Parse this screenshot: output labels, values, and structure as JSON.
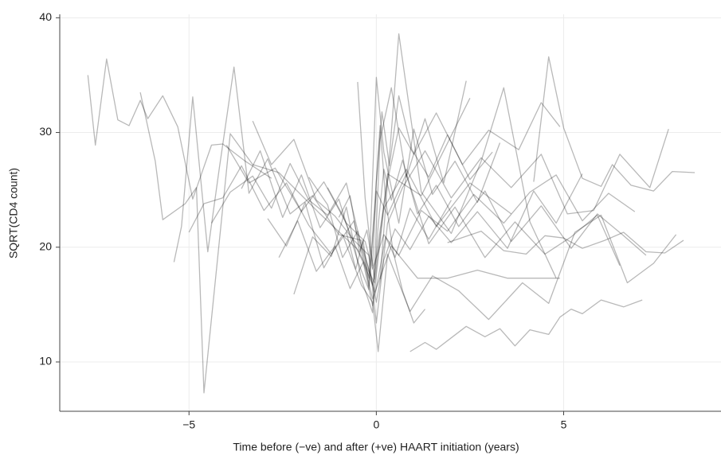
{
  "chart_data": {
    "type": "line",
    "x_label": "Time before (−ve) and after (+ve) HAART initiation (years)",
    "y_label": "SQRT(CD4 count)",
    "xlim": [
      -8.45,
      9.2
    ],
    "ylim": [
      5.7,
      40.3
    ],
    "xticks": [
      {
        "value": -5,
        "label": "−5"
      },
      0,
      5
    ],
    "yticks": [
      10,
      20,
      30,
      40
    ],
    "grid": true,
    "color": "#000000",
    "opacity": 0.28,
    "series": [
      {
        "x": [
          -7.7,
          -7.5,
          -7.2,
          -6.9,
          -6.6,
          -6.3,
          -6.1,
          -5.7,
          -5.3,
          -4.9,
          -4.4,
          -4.1,
          -3.5,
          -2.8
        ],
        "values": [
          35,
          28.9,
          36.4,
          31.1,
          30.6,
          32.8,
          31.2,
          33.2,
          30.5,
          24.2,
          28.9,
          29,
          27.5,
          26
        ]
      },
      {
        "x": [
          -6.3,
          -5.9,
          -5.7,
          -5.1,
          -4.8,
          -4.6,
          -4.4,
          -3.9,
          -3.3,
          -2.6,
          -1.5,
          -0.5,
          -0.05,
          0.3,
          1.2,
          2.5
        ],
        "values": [
          33.5,
          27.5,
          22.4,
          23.8,
          25.2,
          7.3,
          13.8,
          29.9,
          27.2,
          26.5,
          22.9,
          19.8,
          16.9,
          26.4,
          24.5,
          33
        ]
      },
      {
        "x": [
          -5.4,
          -5.2,
          -4.9,
          -4.5,
          -4.2,
          -3.8,
          -3.4,
          -2.9,
          -2.3,
          -1.7,
          -1.0,
          -0.4,
          -0.05,
          0.2,
          0.8,
          1.6,
          2.5,
          3.6
        ],
        "values": [
          18.7,
          21.8,
          33.1,
          19.6,
          26.7,
          35.7,
          24.7,
          27.7,
          22.9,
          24.5,
          21.1,
          20.6,
          16.1,
          23.4,
          26.8,
          21.8,
          25.6,
          22.9
        ]
      },
      {
        "x": [
          0.9,
          1.3,
          1.6,
          2.0,
          2.4,
          2.9,
          3.3,
          3.7,
          4.1,
          4.6,
          4.9,
          5.2,
          5.5,
          6.0,
          6.6,
          7.1
        ],
        "values": [
          10.9,
          11.7,
          11.1,
          12.1,
          13.1,
          12.2,
          12.9,
          11.4,
          12.8,
          12.4,
          13.9,
          14.6,
          14.2,
          15.4,
          14.8,
          15.4
        ]
      },
      {
        "x": [
          1.9,
          2.8,
          3.4,
          4.0,
          4.5,
          5.0,
          5.5,
          6.1,
          6.6,
          7.2,
          7.7,
          8.2
        ],
        "values": [
          20.4,
          21.4,
          19.7,
          19.4,
          21.0,
          20.8,
          19.9,
          20.6,
          21.3,
          19.6,
          19.5,
          20.6
        ]
      },
      {
        "x": [
          4.2,
          4.6,
          5.0,
          5.5,
          6.0,
          6.3,
          6.8,
          7.4,
          7.9,
          8.5
        ],
        "values": [
          25.7,
          36.6,
          30.4,
          26,
          25.3,
          27.2,
          25.4,
          24.9,
          26.6,
          26.5
        ]
      },
      {
        "x": [
          0.1,
          0.6,
          1.2,
          2.0,
          2.8,
          3.4,
          4.1,
          4.8
        ],
        "values": [
          17.2,
          38.6,
          24.8,
          21.2,
          27.5,
          33.9,
          22.2,
          17.3
        ]
      },
      {
        "x": [
          -5.0,
          -4.6,
          -4.1,
          -3.6,
          -3.0,
          -2.4,
          -1.8,
          -1.2,
          -0.6,
          -0.1,
          0.4,
          1.1,
          1.9,
          2.7,
          3.5,
          4.3,
          4.9
        ],
        "values": [
          21.3,
          23.8,
          24.3,
          27.1,
          23.2,
          25.6,
          21.9,
          19.4,
          22.3,
          15.5,
          20.1,
          17.3,
          17.3,
          18.0,
          17.3,
          17.3,
          17.3
        ]
      },
      {
        "x": [
          -3.3,
          -2.8,
          -2.2,
          -1.6,
          -1.1,
          -0.6,
          -0.2,
          0,
          0.3,
          0.7,
          1.3,
          2.0,
          2.8,
          3.6,
          4.4,
          5.1,
          5.8,
          6.5,
          7.3,
          7.8
        ],
        "values": [
          31,
          27.2,
          29.4,
          24.1,
          22.7,
          20.6,
          19.3,
          13.4,
          22.1,
          25.2,
          28.4,
          24.3,
          27.8,
          25.2,
          28.1,
          22.9,
          23.2,
          28.1,
          25.2,
          30.3
        ]
      },
      {
        "x": [
          -2.9,
          -2.4,
          -1.9,
          -1.4,
          -0.9,
          -0.4,
          -0.1,
          0.05,
          0.3,
          0.9,
          1.5,
          2.2,
          3.0,
          3.9,
          4.6,
          5.3,
          6.0,
          6.7,
          7.4,
          8.0
        ],
        "values": [
          22.5,
          20.1,
          23.9,
          18.2,
          21.1,
          16.7,
          15.2,
          10.9,
          19.4,
          14.4,
          17.5,
          16.2,
          13.7,
          16.9,
          15.1,
          21.3,
          22.8,
          16.9,
          18.6,
          21.1
        ]
      },
      {
        "x": [
          -2.2,
          -1.7,
          -1.2,
          -0.8,
          -0.4,
          -0.1,
          0.1,
          0.4,
          0.8,
          1.3,
          1.8,
          2.4
        ],
        "values": [
          15.9,
          20.9,
          19.2,
          23.5,
          17.2,
          14.3,
          29.4,
          33.9,
          26.1,
          31.2,
          25.6,
          34.5
        ]
      },
      {
        "x": [
          -1.8,
          -1.3,
          -0.9,
          -0.5,
          -0.2,
          0,
          0.2,
          0.6,
          1.0,
          1.5,
          2.1,
          2.7,
          3.3
        ],
        "values": [
          26.1,
          23.7,
          19.1,
          21.4,
          17.3,
          34.8,
          28.3,
          22.1,
          30.3,
          24.6,
          27.5,
          23.9,
          29.1
        ]
      },
      {
        "x": [
          -4.0,
          -3.4,
          -2.7,
          -2.0,
          -1.4,
          -0.8,
          -0.3,
          -0.1,
          0.2,
          0.6,
          1.2,
          1.9,
          2.6,
          3.4,
          4.1,
          4.8,
          5.5,
          6.2,
          6.9
        ],
        "values": [
          28.9,
          25.6,
          26.9,
          23.1,
          25.7,
          22.1,
          20.5,
          18.1,
          21.1,
          19.3,
          23.2,
          21.4,
          24.6,
          22.1,
          24.8,
          26.3,
          22.3,
          24.7,
          23.1
        ]
      },
      {
        "x": [
          -3.6,
          -3.1,
          -2.5,
          -2.0,
          -1.5,
          -1.0,
          -0.5,
          -0.2,
          0,
          0.3,
          0.8,
          1.4,
          2.1,
          2.9,
          3.7,
          4.5,
          5.2,
          5.9,
          6.5
        ],
        "values": [
          25.1,
          28.4,
          22.6,
          26.3,
          21.7,
          24.2,
          18.8,
          16.3,
          24.9,
          22.8,
          26.4,
          20.3,
          23.5,
          19.1,
          22.2,
          19.4,
          20.9,
          22.8,
          18.4
        ]
      },
      {
        "x": [
          -1.3,
          -0.9,
          -0.6,
          -0.3,
          -0.1,
          0.1,
          0.3,
          0.6,
          1.0,
          1.6,
          2.3,
          3.0,
          3.8,
          4.4,
          4.9
        ],
        "values": [
          25.2,
          22.8,
          20.4,
          18.3,
          16.7,
          21.5,
          25.8,
          30.4,
          28.1,
          31.7,
          27.2,
          30.2,
          28.5,
          32.6,
          30.5
        ]
      },
      {
        "x": [
          -0.5,
          -0.3,
          -0.15,
          -0.05,
          0.05,
          0.2,
          0.4,
          0.7,
          1.1,
          1.6,
          2.2,
          2.9,
          3.6,
          4.4,
          5.2,
          5.9,
          6.6,
          7.2
        ],
        "values": [
          34.4,
          24.3,
          19.9,
          17.2,
          21.9,
          26.8,
          24.1,
          27.6,
          22.9,
          25.4,
          21.8,
          24.9,
          20.5,
          23.6,
          19.9,
          22.9,
          21.0,
          19.3
        ]
      },
      {
        "x": [
          -2.6,
          -2.1,
          -1.6,
          -1.1,
          -0.7,
          -0.35,
          -0.1,
          0.05,
          0.25,
          0.5,
          0.9,
          1.4,
          2.0
        ],
        "values": [
          19.1,
          22.3,
          17.9,
          20.1,
          16.4,
          18.7,
          14.9,
          17.3,
          20.9,
          19.1,
          23.4,
          20.7,
          24.1
        ]
      },
      {
        "x": [
          -1.0,
          -0.7,
          -0.45,
          -0.25,
          -0.1,
          0,
          0.15,
          0.35,
          0.6,
          0.95,
          1.4,
          1.9,
          2.5,
          3.1
        ],
        "values": [
          22.6,
          24.5,
          19.6,
          21.5,
          18.4,
          25.7,
          31.8,
          27.1,
          33.2,
          28.5,
          26.1,
          29.8,
          25.9,
          28.3
        ]
      },
      {
        "x": [
          -4.4,
          -3.9,
          -3.3,
          -2.8,
          -2.3,
          -1.8,
          -1.3,
          -0.8,
          -0.4,
          -0.15,
          0,
          0.2,
          0.5,
          0.9,
          1.4,
          2.0,
          2.7,
          3.5,
          4.2,
          4.8,
          5.5
        ],
        "values": [
          22.1,
          24.8,
          26.2,
          23.4,
          27.3,
          24.1,
          22.8,
          25.6,
          20.1,
          17.6,
          15.2,
          18.9,
          21.6,
          19.8,
          22.7,
          20.4,
          23.1,
          19.9,
          24.9,
          22.1,
          26.4
        ]
      },
      {
        "x": [
          -0.8,
          -0.55,
          -0.35,
          -0.2,
          -0.05,
          0.1,
          0.25,
          0.45,
          0.7,
          1.0,
          1.3
        ],
        "values": [
          21.3,
          18.1,
          20.6,
          16.6,
          23.4,
          30.6,
          24.1,
          19.6,
          16.2,
          13.4,
          14.6
        ]
      }
    ]
  }
}
